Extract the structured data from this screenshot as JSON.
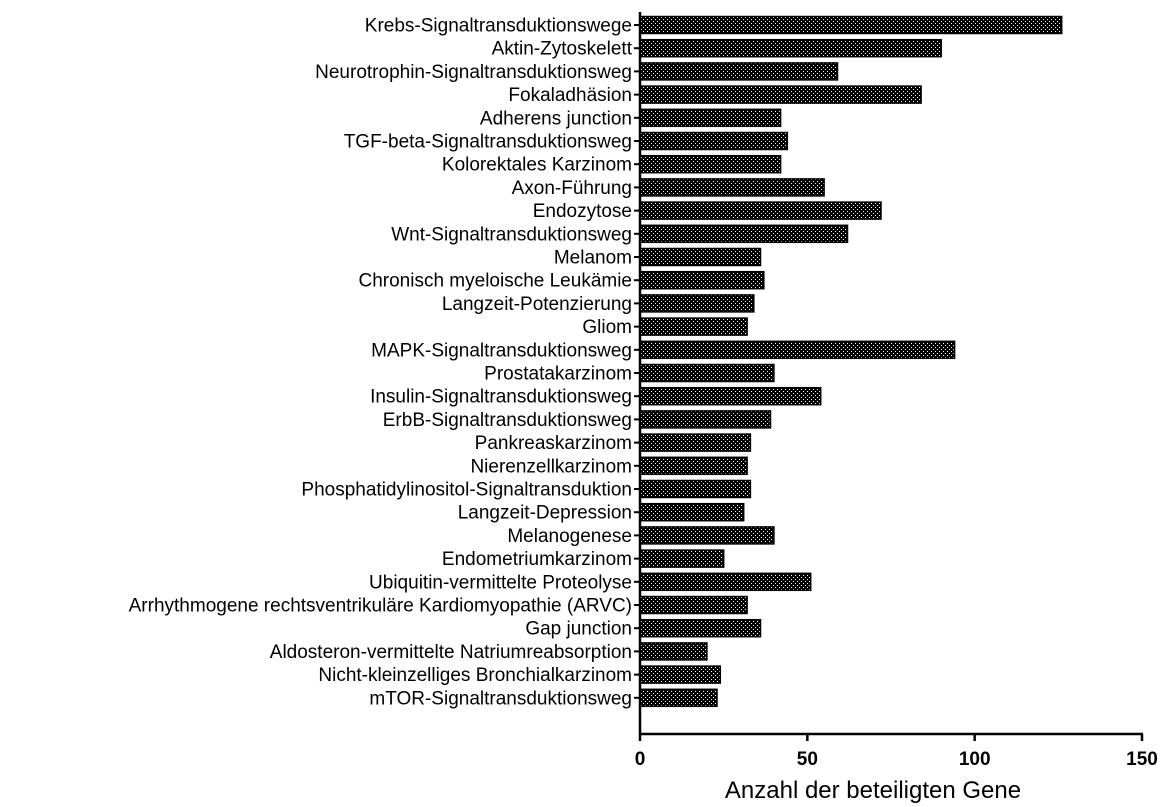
{
  "chart_data": {
    "type": "bar",
    "orientation": "horizontal",
    "title": "",
    "xlabel": "Anzahl der beteiligten Gene",
    "ylabel": "",
    "xlim": [
      0,
      150
    ],
    "xticks": [
      0,
      50,
      100,
      150
    ],
    "grid": false,
    "bar_fill": "#000000",
    "bar_pattern": "crosshatch",
    "categories": [
      "Krebs-Signaltransduktionswege",
      "Aktin-Zytoskelett",
      "Neurotrophin-Signaltransduktionsweg",
      "Fokaladhäsion",
      "Adherens junction",
      "TGF-beta-Signaltransduktionsweg",
      "Kolorektales Karzinom",
      "Axon-Führung",
      "Endozytose",
      "Wnt-Signaltransduktionsweg",
      "Melanom",
      "Chronisch myeloische Leukämie",
      "Langzeit-Potenzierung",
      "Gliom",
      "MAPK-Signaltransduktionsweg",
      "Prostatakarzinom",
      "Insulin-Signaltransduktionsweg",
      "ErbB-Signaltransduktionsweg",
      "Pankreaskarzinom",
      "Nierenzellkarzinom",
      "Phosphatidylinositol-Signaltransduktion",
      "Langzeit-Depression",
      "Melanogenese",
      "Endometriumkarzinom",
      "Ubiquitin-vermittelte Proteolyse",
      "Arrhythmogene rechtsventrikuläre Kardiomyopathie (ARVC)",
      "Gap junction",
      "Aldosteron-vermittelte Natriumreabsorption",
      "Nicht-kleinzelliges Bronchialkarzinom",
      "mTOR-Signaltransduktionsweg"
    ],
    "values": [
      126,
      90,
      59,
      84,
      42,
      44,
      42,
      55,
      72,
      62,
      36,
      37,
      34,
      32,
      94,
      40,
      54,
      39,
      33,
      32,
      33,
      31,
      40,
      25,
      51,
      32,
      36,
      20,
      24,
      23
    ]
  }
}
